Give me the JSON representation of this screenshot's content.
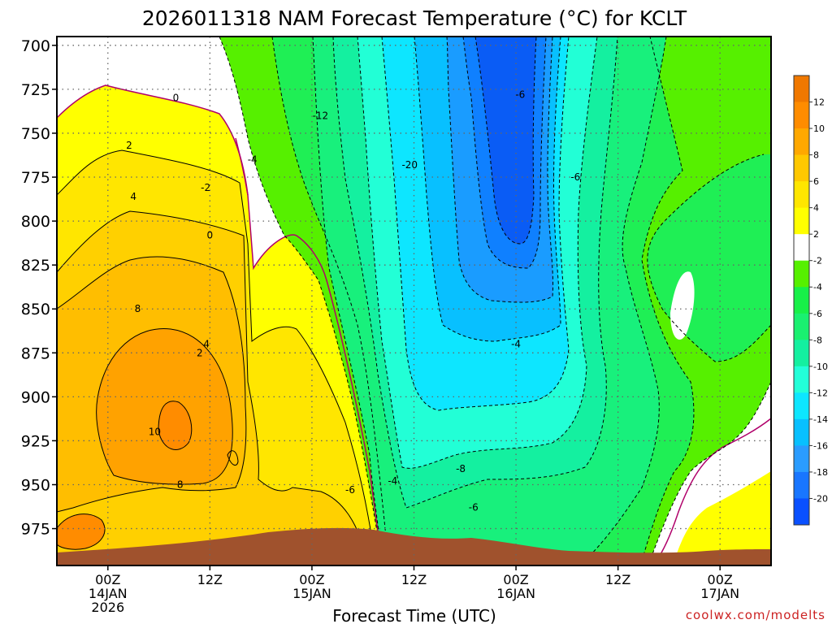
{
  "chart_data": {
    "type": "heatmap",
    "title": "2026011318 NAM Forecast Temperature (°C) for KCLT",
    "xlabel": "Forecast Time (UTC)",
    "ylabel": "",
    "y_ticks": [
      "700",
      "725",
      "750",
      "775",
      "800",
      "825",
      "850",
      "875",
      "900",
      "925",
      "950",
      "975"
    ],
    "y_values": [
      700,
      725,
      750,
      775,
      800,
      825,
      850,
      875,
      900,
      925,
      950,
      975
    ],
    "ylim": [
      695,
      996
    ],
    "y_axis": "pressure (hPa), increasing downward",
    "x_ticks": [
      {
        "hour": 6,
        "label": "00Z",
        "date": "14JAN",
        "year": "2026"
      },
      {
        "hour": 18,
        "label": "12Z",
        "date": "",
        "year": ""
      },
      {
        "hour": 30,
        "label": "00Z",
        "date": "15JAN",
        "year": ""
      },
      {
        "hour": 42,
        "label": "12Z",
        "date": "",
        "year": ""
      },
      {
        "hour": 54,
        "label": "00Z",
        "date": "16JAN",
        "year": ""
      },
      {
        "hour": 66,
        "label": "12Z",
        "date": "",
        "year": ""
      },
      {
        "hour": 78,
        "label": "00Z",
        "date": "17JAN",
        "year": ""
      }
    ],
    "xlim": [
      0,
      84
    ],
    "grid": true,
    "colorbar": {
      "levels": [
        -22,
        -20,
        -18,
        -16,
        -14,
        -12,
        -10,
        -8,
        -6,
        -4,
        -2,
        2,
        4,
        6,
        8,
        10,
        12,
        14
      ],
      "colors": [
        "#0a50ff",
        "#1976ff",
        "#2a9cff",
        "#08c0ff",
        "#0de6ff",
        "#22ffd8",
        "#14f0a0",
        "#1af070",
        "#18f048",
        "#56f000",
        "#ffffff",
        "#ffff00",
        "#ffe600",
        "#ffc800",
        "#ffa800",
        "#ff8c00",
        "#f07800"
      ],
      "labels": [
        "12",
        "10",
        "8",
        "6",
        "4",
        "2",
        "-2",
        "-4",
        "-6",
        "-8",
        "-10",
        "-12",
        "-14",
        "-16",
        "-18",
        "-20"
      ]
    },
    "contour_labels": [
      {
        "text": "0",
        "hour": 14,
        "p": 730
      },
      {
        "text": "2",
        "hour": 8.5,
        "p": 757
      },
      {
        "text": "-2",
        "hour": 17.5,
        "p": 781
      },
      {
        "text": "4",
        "hour": 9,
        "p": 786
      },
      {
        "text": "0",
        "hour": 18,
        "p": 808
      },
      {
        "text": "-4",
        "hour": 23,
        "p": 765
      },
      {
        "text": "-12",
        "hour": 31,
        "p": 740
      },
      {
        "text": "-20",
        "hour": 41.5,
        "p": 768
      },
      {
        "text": "-6",
        "hour": 54.5,
        "p": 728
      },
      {
        "text": "-6",
        "hour": 61,
        "p": 775
      },
      {
        "text": "8",
        "hour": 9.5,
        "p": 850
      },
      {
        "text": "2",
        "hour": 16.8,
        "p": 875
      },
      {
        "text": "4",
        "hour": 17.6,
        "p": 870
      },
      {
        "text": "-4",
        "hour": 54,
        "p": 870
      },
      {
        "text": "10",
        "hour": 11.5,
        "p": 920
      },
      {
        "text": "8",
        "hour": 14.5,
        "p": 950
      },
      {
        "text": "-8",
        "hour": 47.5,
        "p": 941
      },
      {
        "text": "-4",
        "hour": 39.5,
        "p": 948
      },
      {
        "text": "-6",
        "hour": 34.5,
        "p": 953
      },
      {
        "text": "-6",
        "hour": 49,
        "p": 963
      }
    ],
    "credit": "coolwx.com/modelts"
  }
}
